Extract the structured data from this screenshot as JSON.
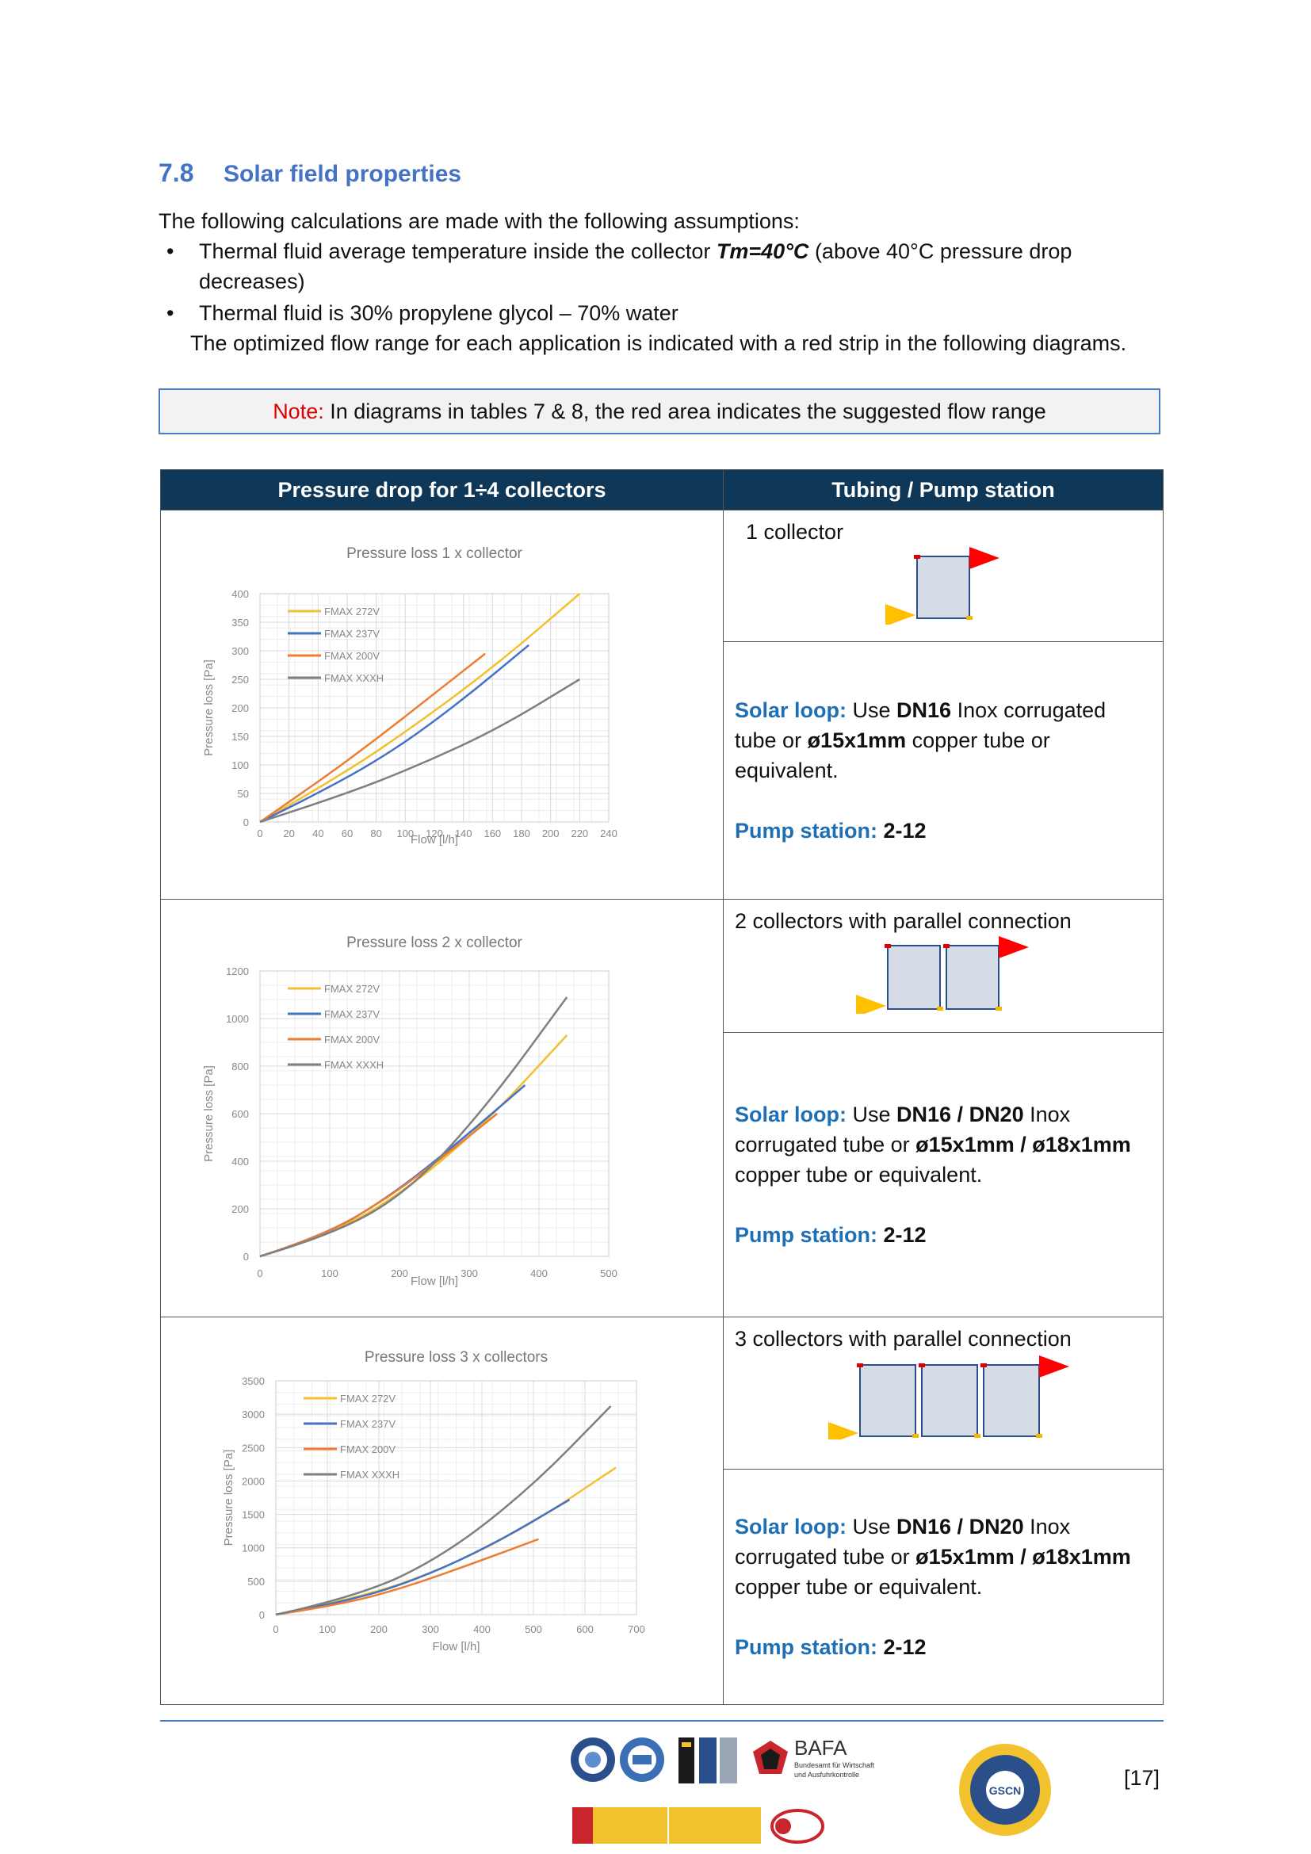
{
  "section": {
    "number": "7.8",
    "title": "Solar field properties"
  },
  "intro": "The following calculations are made with the following assumptions:",
  "bullets": {
    "b1_pre": "Thermal fluid average temperature inside the collector ",
    "b1_em": "Tm=40°C",
    "b1_post": " (above 40°C pressure drop decreases)",
    "b2": "Thermal fluid is 30% propylene glycol – 70% water"
  },
  "paragraph": "The optimized flow range for each application is indicated with a red strip in the following diagrams.",
  "note": {
    "label": "Note:",
    "text": " In diagrams in tables 7 & 8, the red area indicates the suggested flow range"
  },
  "table": {
    "header_left": "Pressure drop for 1÷4 collectors",
    "header_right": "Tubing / Pump station",
    "rows": [
      {
        "config": "1 collector",
        "solar_label": "Solar loop:",
        "solar_t1": " Use ",
        "solar_b1": "DN16",
        "solar_t2": " Inox corrugated tube or ",
        "solar_b2": "ø15x1mm",
        "solar_t3": " copper tube or equivalent.",
        "pump_label": "Pump station:",
        "pump_value": "2-12"
      },
      {
        "config": "2 collectors with parallel connection",
        "solar_label": "Solar loop:",
        "solar_t1": " Use ",
        "solar_b1": "DN16 / DN20",
        "solar_t2": " Inox corrugated tube or ",
        "solar_b2": "ø15x1mm / ø18x1mm",
        "solar_t3": " copper tube or equivalent.",
        "pump_label": "Pump station:",
        "pump_value": "2-12"
      },
      {
        "config": "3 collectors with parallel connection",
        "solar_label": "Solar loop:",
        "solar_t1": " Use ",
        "solar_b1": "DN16 / DN20",
        "solar_t2": " Inox corrugated tube or ",
        "solar_b2": "ø15x1mm / ø18x1mm",
        "solar_t3": " copper tube or equivalent.",
        "pump_label": "Pump station:",
        "pump_value": "2-12"
      }
    ]
  },
  "chart_data": [
    {
      "type": "line",
      "title": "Pressure loss 1 x collector",
      "xlabel": "Flow [l/h]",
      "ylabel": "Pressure loss [Pa]",
      "xlim": [
        0,
        240
      ],
      "ylim": [
        0,
        400
      ],
      "xticks": [
        0,
        20,
        40,
        60,
        80,
        100,
        120,
        140,
        160,
        180,
        200,
        220,
        240
      ],
      "yticks": [
        0,
        50,
        100,
        150,
        200,
        250,
        300,
        350,
        400
      ],
      "grid": true,
      "legend": "top-left",
      "series": [
        {
          "name": "FMAX 272V",
          "color": "#f2c12e",
          "x": [
            0,
            55,
            110,
            165,
            220
          ],
          "y": [
            0,
            80,
            175,
            280,
            400
          ]
        },
        {
          "name": "FMAX 237V",
          "color": "#4472c4",
          "x": [
            0,
            48,
            95,
            140,
            185
          ],
          "y": [
            0,
            60,
            130,
            215,
            310
          ]
        },
        {
          "name": "FMAX 200V",
          "color": "#ed7d31",
          "x": [
            0,
            40,
            80,
            120,
            155
          ],
          "y": [
            0,
            70,
            145,
            225,
            295
          ]
        },
        {
          "name": "FMAX XXXH",
          "color": "#7f7f7f",
          "x": [
            0,
            55,
            110,
            165,
            220
          ],
          "y": [
            0,
            45,
            100,
            165,
            250
          ]
        }
      ]
    },
    {
      "type": "line",
      "title": "Pressure loss 2 x collector",
      "xlabel": "Flow [l/h]",
      "ylabel": "Pressure loss [Pa]",
      "xlim": [
        0,
        500
      ],
      "ylim": [
        0,
        1200
      ],
      "xticks": [
        0,
        100,
        200,
        300,
        400,
        500
      ],
      "yticks": [
        0,
        200,
        400,
        600,
        800,
        1000,
        1200
      ],
      "grid": true,
      "legend": "top-left",
      "series": [
        {
          "name": "FMAX 272V",
          "color": "#f2c12e",
          "x": [
            0,
            110,
            220,
            330,
            440
          ],
          "y": [
            0,
            100,
            300,
            580,
            930
          ]
        },
        {
          "name": "FMAX 237V",
          "color": "#4472c4",
          "x": [
            0,
            95,
            190,
            285,
            380
          ],
          "y": [
            0,
            90,
            260,
            480,
            720
          ]
        },
        {
          "name": "FMAX 200V",
          "color": "#ed7d31",
          "x": [
            0,
            85,
            170,
            255,
            340
          ],
          "y": [
            0,
            80,
            220,
            400,
            600
          ]
        },
        {
          "name": "FMAX XXXH",
          "color": "#7f7f7f",
          "x": [
            0,
            110,
            220,
            330,
            440
          ],
          "y": [
            0,
            95,
            290,
            650,
            1090
          ]
        }
      ]
    },
    {
      "type": "line",
      "title": "Pressure loss 3 x collectors",
      "xlabel": "Flow [l/h]",
      "ylabel": "Pressure loss [Pa]",
      "xlim": [
        0,
        700
      ],
      "ylim": [
        0,
        3500
      ],
      "xticks": [
        0,
        100,
        200,
        300,
        400,
        500,
        600,
        700
      ],
      "yticks": [
        0,
        500,
        1000,
        1500,
        2000,
        2500,
        3000,
        3500
      ],
      "grid": true,
      "legend": "top-left",
      "series": [
        {
          "name": "FMAX 272V",
          "color": "#f2c12e",
          "x": [
            0,
            165,
            330,
            495,
            660
          ],
          "y": [
            0,
            250,
            700,
            1350,
            2200
          ]
        },
        {
          "name": "FMAX 237V",
          "color": "#4472c4",
          "x": [
            0,
            143,
            286,
            429,
            570
          ],
          "y": [
            0,
            200,
            560,
            1080,
            1720
          ]
        },
        {
          "name": "FMAX 200V",
          "color": "#ed7d31",
          "x": [
            0,
            128,
            256,
            384,
            510
          ],
          "y": [
            0,
            150,
            420,
            770,
            1130
          ]
        },
        {
          "name": "FMAX XXXH",
          "color": "#7f7f7f",
          "x": [
            0,
            165,
            330,
            495,
            650
          ],
          "y": [
            0,
            280,
            900,
            1900,
            3120
          ]
        }
      ]
    }
  ],
  "logos": {
    "bafa_title": "BAFA",
    "bafa_sub1": "Bundesamt für Wirtschaft",
    "bafa_sub2": "und Ausfuhrkontrolle",
    "gscn": "GSCN"
  },
  "page_number": "[17]"
}
